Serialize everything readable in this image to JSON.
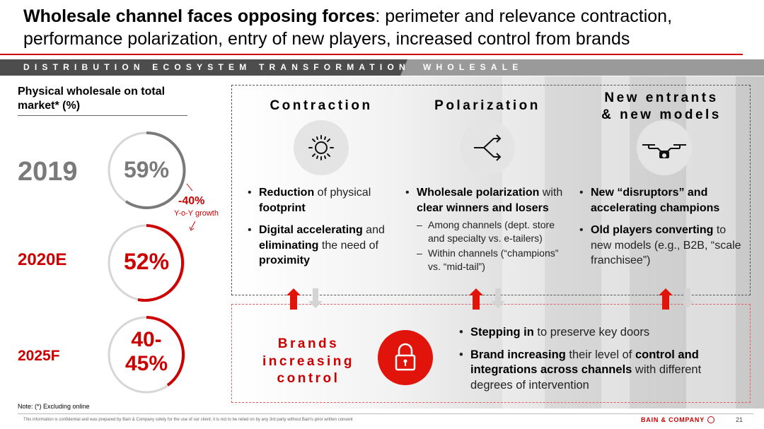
{
  "title": {
    "bold": "Wholesale channel faces opposing forces",
    "rest": ": perimeter and relevance contraction, performance polarization, entry of new players, increased control from brands"
  },
  "banner": {
    "left": "DISTRIBUTION ECOSYSTEM TRANSFORMATION",
    "right": "WHOLESALE"
  },
  "left_panel": {
    "heading": "Physical wholesale on total market* (%)",
    "rows": [
      {
        "year": "2019",
        "value": "59%"
      },
      {
        "year": "2020E",
        "value": "52%"
      },
      {
        "year": "2025F",
        "value_line1": "40-",
        "value_line2": "45%"
      }
    ],
    "yoy_value": "-40%",
    "yoy_label": "Y-o-Y growth"
  },
  "columns": {
    "contraction": {
      "heading": "Contraction",
      "icon": "sun-burst-icon",
      "bullets": [
        [
          {
            "t": "Reduction",
            "b": true
          },
          {
            "t": " of physical ",
            "b": false
          },
          {
            "t": "footprint",
            "b": true
          }
        ],
        [
          {
            "t": "Digital accelerating",
            "b": true
          },
          {
            "t": " and ",
            "b": false
          },
          {
            "t": "eliminating",
            "b": true
          },
          {
            "t": " the need of ",
            "b": false
          },
          {
            "t": "proximity",
            "b": true
          }
        ]
      ]
    },
    "polarization": {
      "heading": "Polarization",
      "icon": "fork-arrows-icon",
      "bullets": [
        [
          {
            "t": "Wholesale polarization",
            "b": true
          },
          {
            "t": " with ",
            "b": false
          },
          {
            "t": "clear winners and losers",
            "b": true
          }
        ]
      ],
      "subs": [
        "Among channels (dept. store and specialty vs. e-tailers)",
        "Within channels (“champions” vs. “mid-tail”)"
      ]
    },
    "new_entrants": {
      "heading_line1": "New entrants",
      "heading_line2": "& new models",
      "icon": "drone-icon",
      "bullets": [
        [
          {
            "t": "New “disruptors” and accelerating champions",
            "b": true
          }
        ],
        [
          {
            "t": "Old players converting",
            "b": true
          },
          {
            "t": " to new models (e.g., B2B, “scale franchisee”)",
            "b": false
          }
        ]
      ]
    }
  },
  "brands": {
    "label_line1": "Brands",
    "label_line2": "increasing",
    "label_line3": "control",
    "icon": "lock-icon",
    "bullets": [
      [
        {
          "t": "Stepping in",
          "b": true
        },
        {
          "t": " to preserve key doors",
          "b": false
        }
      ],
      [
        {
          "t": "Brand increasing",
          "b": true
        },
        {
          "t": " their level of ",
          "b": false
        },
        {
          "t": "control and integrations across channels",
          "b": true
        },
        {
          "t": " with different degrees of intervention",
          "b": false
        }
      ]
    ]
  },
  "footer": {
    "note": "Note: (*) Excluding online",
    "confidential": "This information is confidential and was prepared by Bain & Company solely for the use of our client; it is not to be relied on by any 3rd party without Bain's prior written consent",
    "logo": "BAIN & COMPANY",
    "page": "21"
  },
  "colors": {
    "accent_red": "#cc0000",
    "gray_text": "#7a7a7a",
    "banner_dark": "#4d4d4d",
    "banner_light": "#9a9a9a"
  }
}
